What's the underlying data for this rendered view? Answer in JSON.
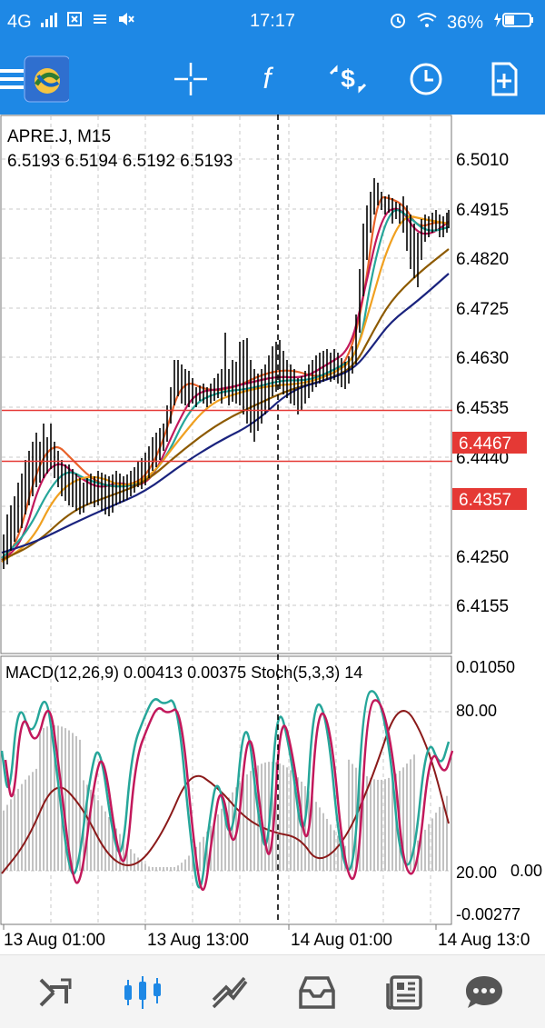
{
  "status_bar": {
    "network": "4G",
    "time": "17:17",
    "battery": "36%"
  },
  "toolbar": {
    "icons": [
      "menu-icon",
      "metatrader-logo",
      "crosshair-icon",
      "indicators-icon",
      "trade-icon",
      "period-icon",
      "new-object-icon"
    ],
    "function_label": "f"
  },
  "main_chart": {
    "symbol": "APRE.J, M15",
    "ohlc": "6.5193 6.5194 6.5192 6.5193",
    "price_ticks": [
      "6.5010",
      "6.4915",
      "6.4820",
      "6.4725",
      "6.4630",
      "6.4535",
      "6.4440",
      "6.4250",
      "6.4155"
    ],
    "price_lines": [
      {
        "label": "6.4467",
        "value": 6.4467,
        "color": "#e53935"
      },
      {
        "label": "6.4357",
        "value": 6.4357,
        "color": "#e53935"
      }
    ],
    "candle_color": "#000000",
    "ma_colors": [
      "#e8622a",
      "#c2185b",
      "#26a69a",
      "#f0a020",
      "#8d5a00",
      "#1a237e"
    ]
  },
  "sub_chart": {
    "label": "MACD(12,26,9) 0.00413 0.00375 Stoch(5,3,3) 14",
    "ticks": [
      "0.01050",
      "80.00",
      "20.00",
      "0.00",
      "-0.00277"
    ]
  },
  "time_axis": [
    "13 Aug 01:00",
    "13 Aug 13:00",
    "14 Aug 01:00",
    "14 Aug 13:0"
  ],
  "bottom_nav": {
    "items": [
      "quotes",
      "chart",
      "trade",
      "history",
      "news",
      "messages"
    ],
    "active": "chart",
    "active_color": "#1e88e5",
    "inactive_color": "#555555"
  }
}
